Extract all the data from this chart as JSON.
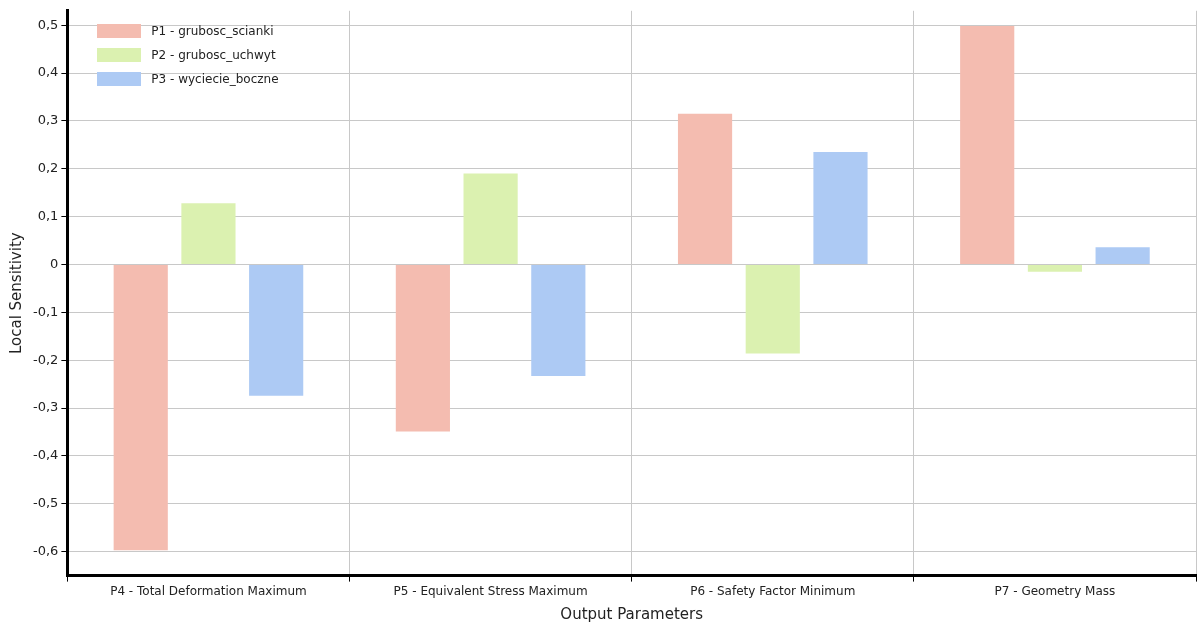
{
  "chart_data": {
    "type": "bar",
    "xlabel": "Output Parameters",
    "ylabel": "Local Sensitivity",
    "categories": [
      "P4 - Total Deformation Maximum",
      "P5 - Equivalent Stress Maximum",
      "P6 - Safety Factor Minimum",
      "P7 - Geometry Mass"
    ],
    "series": [
      {
        "name": "P1 - grubosc_scianki",
        "color": "#f4bcb0",
        "values": [
          -0.597,
          -0.349,
          0.315,
          0.498
        ]
      },
      {
        "name": "P2 - grubosc_uchwyt",
        "color": "#dbf1b0",
        "values": [
          0.128,
          0.19,
          -0.186,
          -0.015
        ]
      },
      {
        "name": "P3 - wyciecie_boczne",
        "color": "#adcaf4",
        "values": [
          -0.274,
          -0.233,
          0.235,
          0.036
        ]
      }
    ],
    "ylim": [
      -0.65,
      0.53
    ],
    "yticks": [
      {
        "value": -0.6,
        "label": "-0,6"
      },
      {
        "value": -0.5,
        "label": "-0,5"
      },
      {
        "value": -0.4,
        "label": "-0,4"
      },
      {
        "value": -0.3,
        "label": "-0,3"
      },
      {
        "value": -0.2,
        "label": "-0,2"
      },
      {
        "value": -0.1,
        "label": "-0,1"
      },
      {
        "value": 0,
        "label": "0"
      },
      {
        "value": 0.1,
        "label": "0,1"
      },
      {
        "value": 0.2,
        "label": "0,2"
      },
      {
        "value": 0.3,
        "label": "0,3"
      },
      {
        "value": 0.4,
        "label": "0,4"
      },
      {
        "value": 0.5,
        "label": "0,5"
      }
    ],
    "grid": true,
    "legend": "top left"
  }
}
